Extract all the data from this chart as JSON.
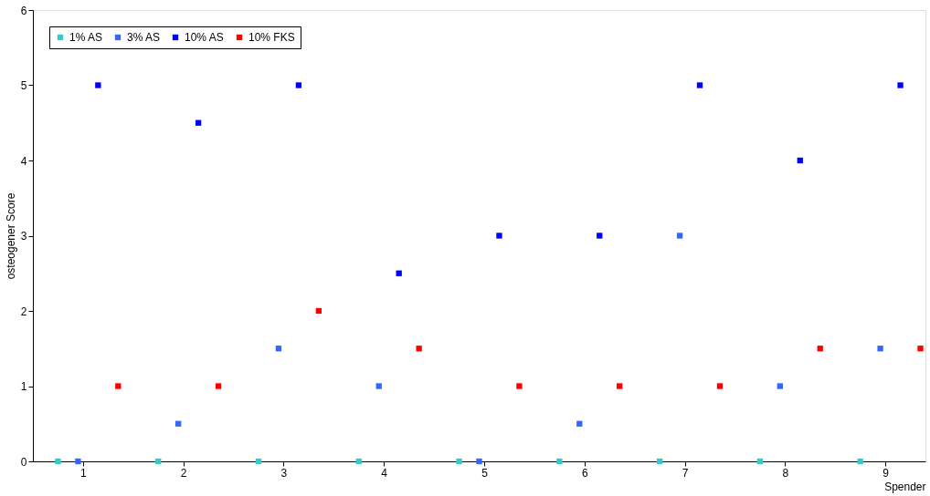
{
  "chart_data": {
    "type": "scatter",
    "xlabel": "Spender",
    "ylabel": "osteogener Score",
    "xlim": [
      0.5,
      9.4
    ],
    "xticks": [
      1,
      2,
      3,
      4,
      5,
      6,
      7,
      8,
      9
    ],
    "ylim": [
      0,
      6
    ],
    "yticks": [
      0,
      1,
      2,
      3,
      4,
      5,
      6
    ],
    "grid": false,
    "legend": "top left",
    "marker": "square",
    "series": [
      {
        "name": "1% AS",
        "color": "#33cccc",
        "x": [
          0.75,
          1.75,
          2.75,
          3.75,
          4.75,
          5.75,
          6.75,
          7.75,
          8.75
        ],
        "values": [
          0,
          0,
          0,
          0,
          0,
          0,
          0,
          0,
          0
        ]
      },
      {
        "name": "3% AS",
        "color": "#3366ff",
        "x": [
          0.95,
          1.95,
          2.95,
          3.95,
          4.95,
          5.95,
          6.95,
          7.95,
          8.95
        ],
        "values": [
          0,
          0.5,
          1.5,
          1,
          0,
          0.5,
          3,
          1,
          1.5
        ]
      },
      {
        "name": "10% AS",
        "color": "#0000ff",
        "x": [
          1.15,
          2.15,
          3.15,
          4.15,
          5.15,
          6.15,
          7.15,
          8.15,
          9.15
        ],
        "values": [
          5,
          4.5,
          5,
          2.5,
          3,
          3,
          5,
          4,
          5
        ]
      },
      {
        "name": "10% FKS",
        "color": "#ff0000",
        "x": [
          1.35,
          2.35,
          3.35,
          4.35,
          5.35,
          6.35,
          7.35,
          8.35,
          9.35
        ],
        "values": [
          1,
          1,
          2,
          1.5,
          1,
          1,
          1,
          1.5,
          1.5
        ]
      }
    ]
  }
}
